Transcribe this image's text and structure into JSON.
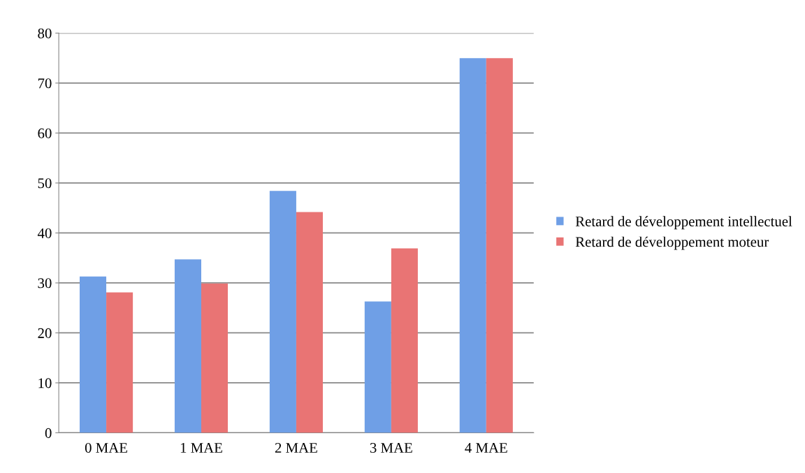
{
  "chart_data": {
    "type": "bar",
    "categories": [
      "0 MAE",
      "1 MAE",
      "2 MAE",
      "3 MAE",
      "4 MAE"
    ],
    "series": [
      {
        "name": "Retard de développement intellectuel",
        "color": "#6f9fe6",
        "values": [
          31.3,
          34.7,
          48.4,
          26.3,
          75
        ]
      },
      {
        "name": "Retard de développement moteur",
        "color": "#e97474",
        "values": [
          28.1,
          29.9,
          44.2,
          36.9,
          75
        ]
      }
    ],
    "ylim": [
      0,
      80
    ],
    "yticks": [
      0,
      10,
      20,
      30,
      40,
      50,
      60,
      70,
      80
    ],
    "grid": "y",
    "legend": "right"
  }
}
